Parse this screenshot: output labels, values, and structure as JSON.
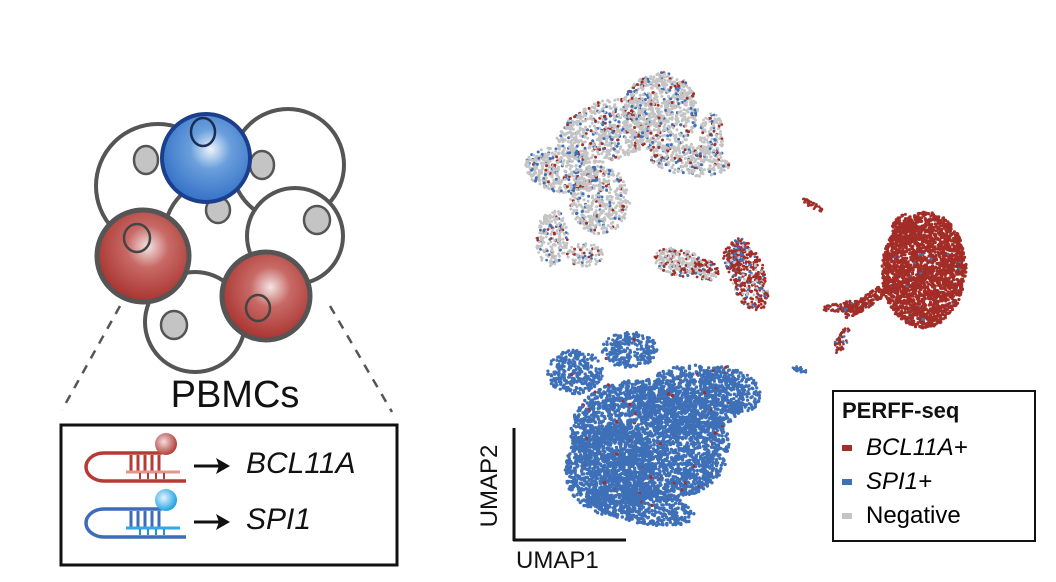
{
  "diagram": {
    "cells_label": "PBMCs",
    "probes": [
      {
        "target": "BCL11A",
        "color": "#b83a34",
        "bead_color": "#b83a34"
      },
      {
        "target": "SPI1",
        "color": "#3d6cb8",
        "bead_color": "#2aa7e0"
      }
    ]
  },
  "umap": {
    "x_axis_label": "UMAP1",
    "y_axis_label": "UMAP2",
    "legend": {
      "title": "PERFF-seq",
      "items": [
        {
          "label": "BCL11A+",
          "color": "#a32d27"
        },
        {
          "label": "SPI1+",
          "color": "#3e70b8"
        },
        {
          "label": "Negative",
          "color": "#c4c4c4"
        }
      ]
    }
  }
}
